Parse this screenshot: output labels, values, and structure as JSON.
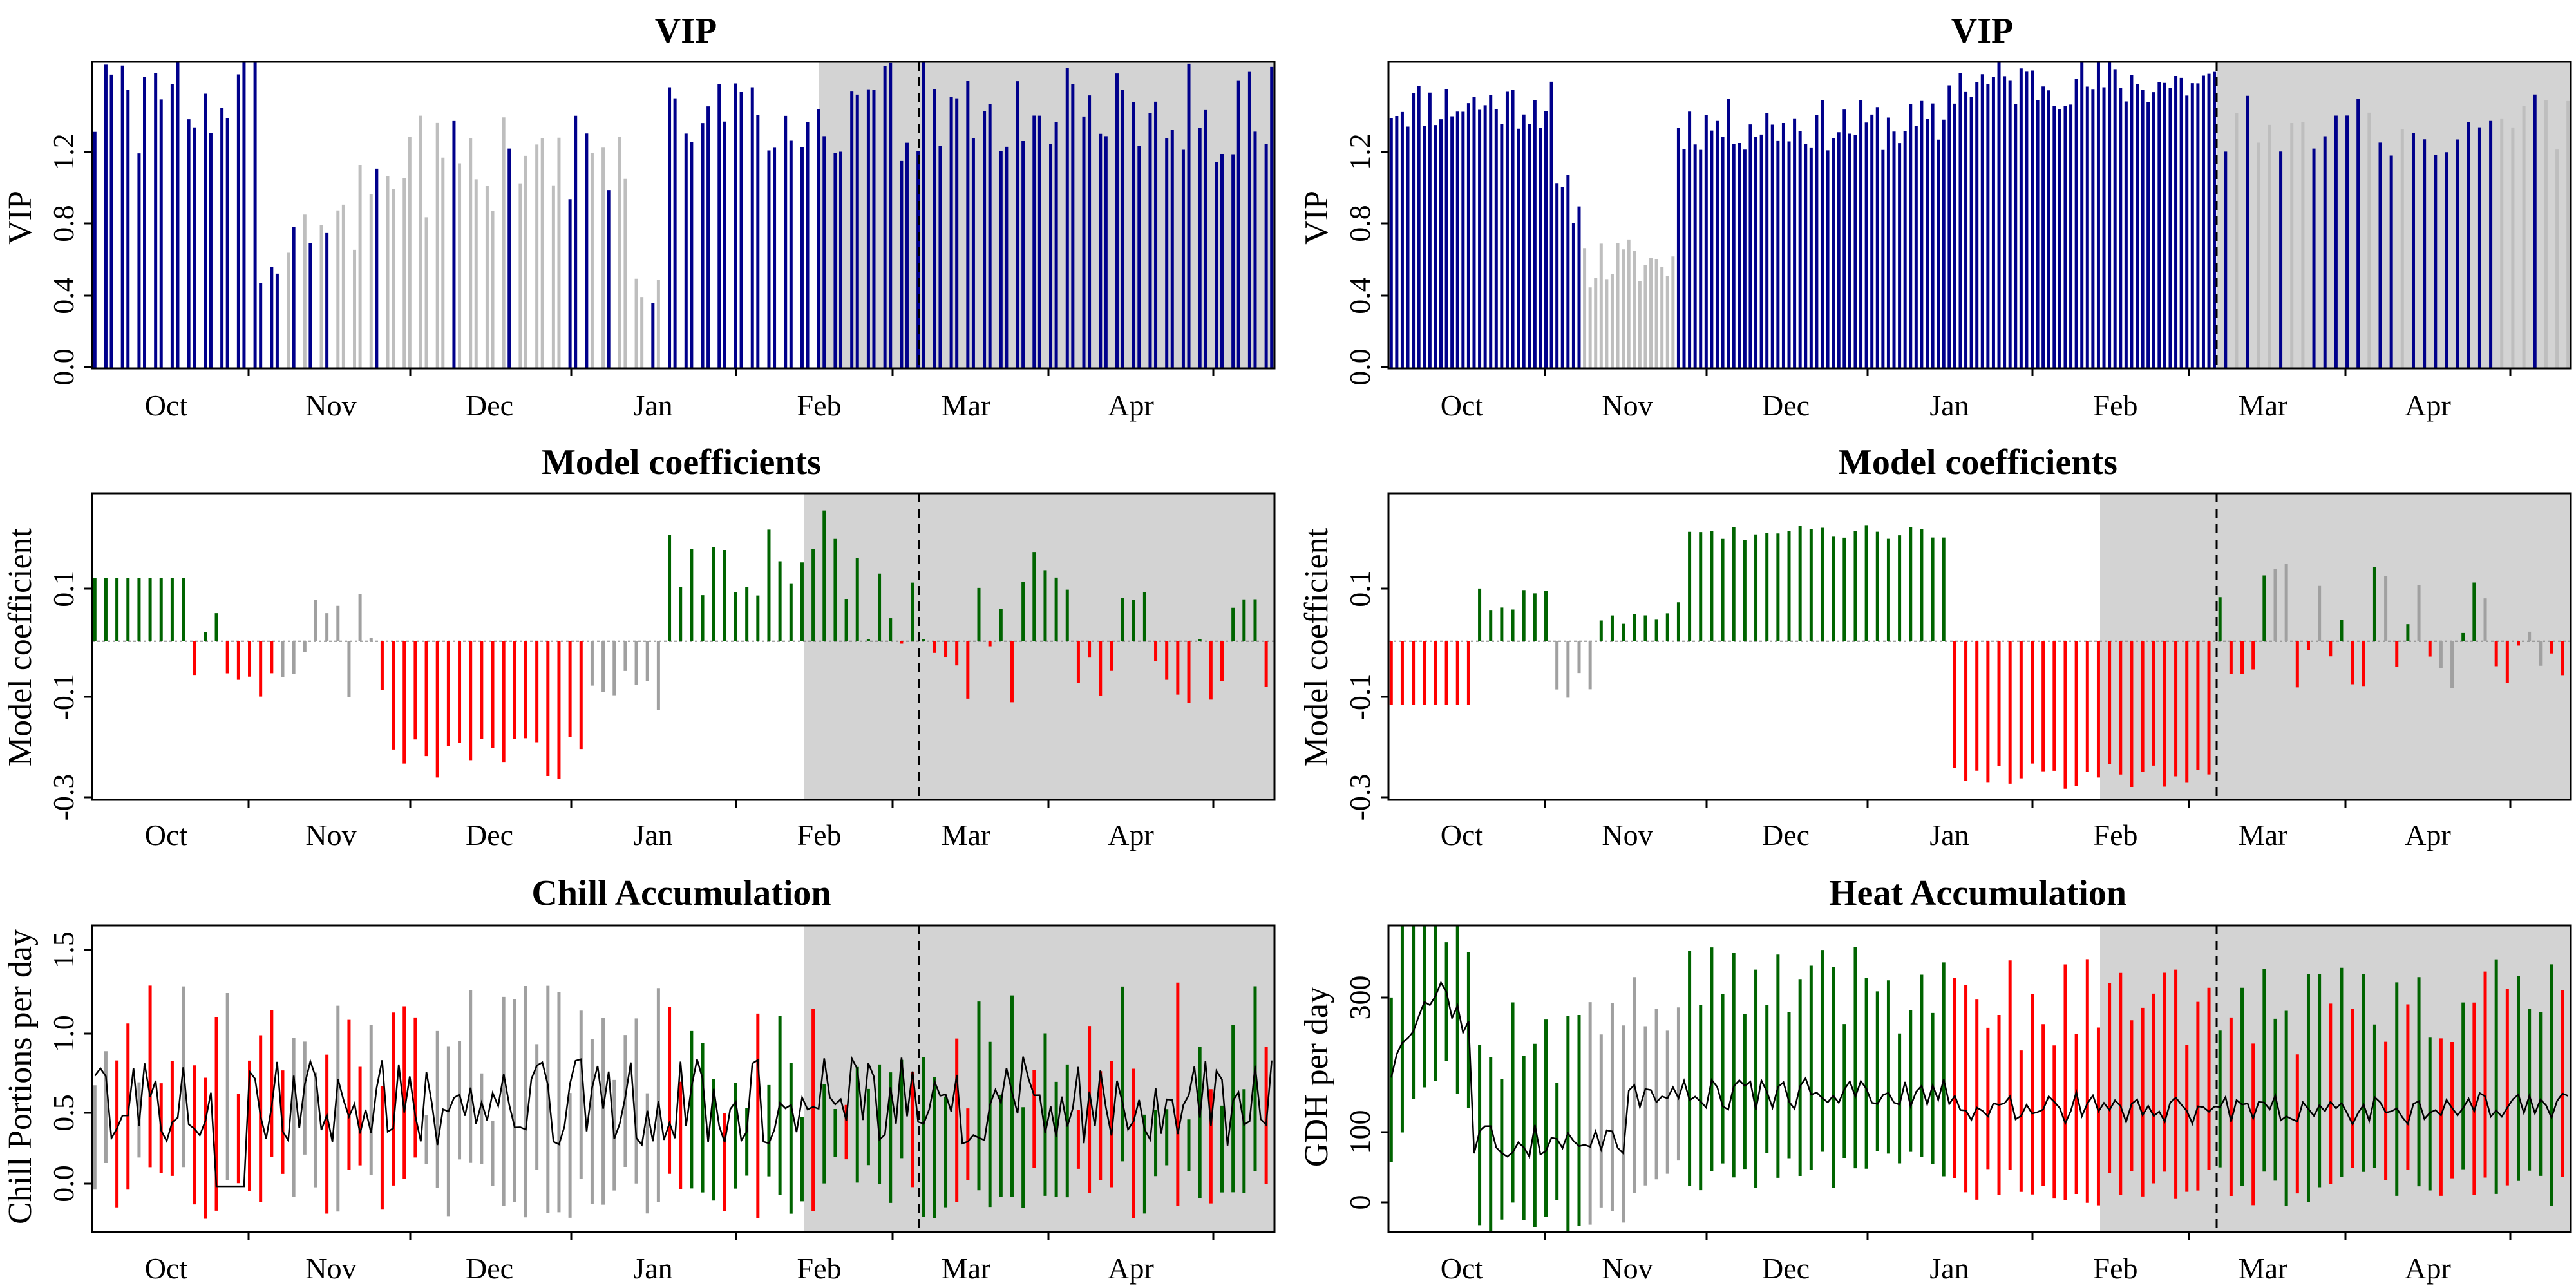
{
  "colors": {
    "vip_important": "#00008B",
    "vip_unimportant": "#BEBEBE",
    "positive": "#006400",
    "negative": "#FF0000",
    "neutral": "#A0A0A0",
    "mean_line": "#000000",
    "shading": "#D3D3D3",
    "marker_line": "#000000"
  },
  "chart_data": [
    {
      "id": "left_vip",
      "type": "bar",
      "title": "VIP",
      "ylabel": "VIP",
      "xlabel": "",
      "ylim": [
        0,
        1.45
      ],
      "yticks": [
        0.0,
        0.4,
        0.8,
        1.2
      ],
      "ytick_labels": [
        "0.0",
        "0.4",
        "0.8",
        "1.2"
      ],
      "month_labels": [
        "Oct",
        "Nov",
        "Dec",
        "Jan",
        "Feb",
        "Mar",
        "Apr"
      ],
      "shaded": true,
      "marker": true,
      "bar_pattern": "left_vip",
      "grid": false
    },
    {
      "id": "right_vip",
      "type": "bar",
      "title": "VIP",
      "ylabel": "VIP",
      "xlabel": "",
      "ylim": [
        0,
        1.45
      ],
      "yticks": [
        0.0,
        0.4,
        0.8,
        1.2
      ],
      "ytick_labels": [
        "0.0",
        "0.4",
        "0.8",
        "1.2"
      ],
      "month_labels": [
        "Oct",
        "Nov",
        "Dec",
        "Jan",
        "Feb",
        "Mar",
        "Apr"
      ],
      "shaded": true,
      "marker": true,
      "bar_pattern": "right_vip",
      "grid": false
    },
    {
      "id": "left_coef",
      "type": "bar",
      "title": "Model coefficients",
      "ylabel": "Model coefficient",
      "xlabel": "",
      "ylim": [
        -0.3,
        0.28
      ],
      "yticks": [
        -0.3,
        -0.1,
        0.1
      ],
      "ytick_labels": [
        "-0.3",
        "-0.1",
        "0.1"
      ],
      "month_labels": [
        "Oct",
        "Nov",
        "Dec",
        "Jan",
        "Feb",
        "Mar",
        "Apr"
      ],
      "shaded": true,
      "marker": true,
      "bar_pattern": "left_coef",
      "grid": false
    },
    {
      "id": "right_coef",
      "type": "bar",
      "title": "Model coefficients",
      "ylabel": "Model coefficient",
      "xlabel": "",
      "ylim": [
        -0.3,
        0.28
      ],
      "yticks": [
        -0.3,
        -0.1,
        0.1
      ],
      "ytick_labels": [
        "-0.3",
        "-0.1",
        "0.1"
      ],
      "month_labels": [
        "Oct",
        "Nov",
        "Dec",
        "Jan",
        "Feb",
        "Mar",
        "Apr"
      ],
      "shaded": true,
      "marker": true,
      "bar_pattern": "right_coef",
      "grid": false
    },
    {
      "id": "left_chill",
      "type": "line",
      "title": "Chill Accumulation",
      "ylabel": "Chill Portions per day",
      "xlabel": "",
      "ylim": [
        -0.28,
        1.6
      ],
      "yticks": [
        0.0,
        0.5,
        1.0,
        1.5
      ],
      "ytick_labels": [
        "0.0",
        "0.5",
        "1.0",
        "1.5"
      ],
      "month_labels": [
        "Oct",
        "Nov",
        "Dec",
        "Jan",
        "Feb",
        "Mar",
        "Apr"
      ],
      "shaded": true,
      "marker": true,
      "bar_pattern": "left_chill",
      "grid": false
    },
    {
      "id": "right_heat",
      "type": "line",
      "title": "Heat Accumulation",
      "ylabel": "GDH per day",
      "xlabel": "",
      "ylim": [
        -40,
        430
      ],
      "yticks": [
        0,
        100,
        300
      ],
      "ytick_labels": [
        "0",
        "100",
        "300"
      ],
      "month_labels": [
        "Oct",
        "Nov",
        "Dec",
        "Jan",
        "Feb",
        "Mar",
        "Apr"
      ],
      "shaded": true,
      "marker": true,
      "bar_pattern": "right_heat",
      "grid": false
    }
  ]
}
